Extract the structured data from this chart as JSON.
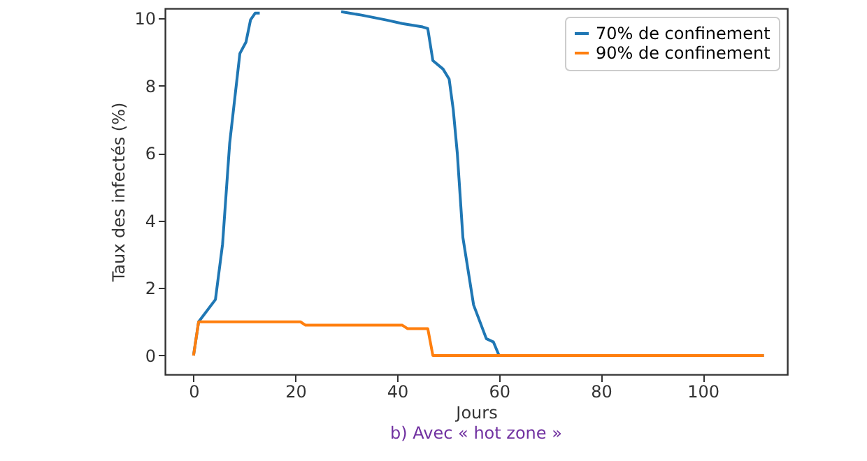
{
  "chart_data": {
    "type": "line",
    "xlabel": "Jours",
    "ylabel": "Taux des infectés (%)",
    "annotations": [
      "b)   Avec « hot zone »"
    ],
    "series": [
      {
        "name": "70% de confinement",
        "color": "#1f77b4",
        "x": [
          0,
          1,
          4.3,
          5.7,
          7.1,
          9.1,
          10.3,
          11.2,
          12.1,
          13,
          13.9,
          20,
          28.5,
          29,
          33,
          38,
          41,
          45,
          46,
          47,
          49,
          50.2,
          51,
          51.8,
          52.9,
          55,
          57.5,
          58.9,
          60,
          112
        ],
        "values": [
          0,
          1.0,
          1.66,
          3.3,
          6.3,
          8.96,
          9.3,
          9.96,
          10.16,
          10.16,
          null,
          null,
          null,
          10.2,
          10.1,
          9.95,
          9.85,
          9.75,
          9.7,
          8.75,
          8.5,
          8.2,
          7.3,
          6.0,
          3.5,
          1.5,
          0.5,
          0.4,
          0,
          0
        ]
      },
      {
        "name": "90% de confinement",
        "color": "#ff7f0e",
        "x": [
          0,
          1,
          21,
          22,
          41,
          42,
          46,
          47,
          112
        ],
        "values": [
          0,
          1,
          1,
          0.9,
          0.9,
          0.8,
          0.8,
          0,
          0
        ]
      }
    ],
    "xlim": [
      -5.6,
      116.6
    ],
    "ylim": [
      -0.56,
      10.3
    ],
    "xticks": [
      0,
      20,
      40,
      60,
      80,
      100
    ],
    "yticks": [
      0,
      2,
      4,
      6,
      8,
      10
    ],
    "grid": false,
    "legend": "top right",
    "marker": "none",
    "line_style": "solid"
  }
}
